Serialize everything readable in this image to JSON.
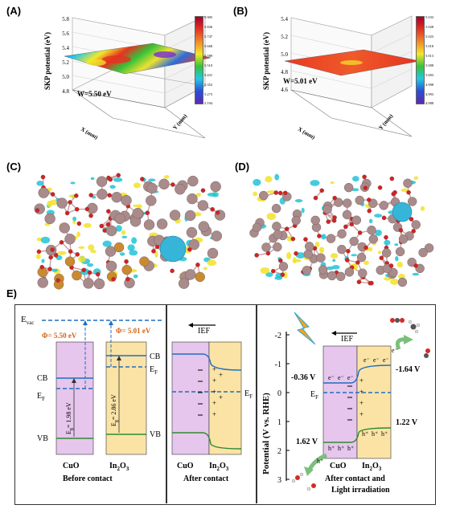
{
  "panels": {
    "a": {
      "label": "(A)",
      "zlabel": "SKP potential (eV)",
      "work_function": "W=5.50 eV",
      "xlabel": "X (mm)",
      "ylabel": "Y (mm)",
      "z_ticks": [
        "5.8",
        "5.6",
        "5.4",
        "5.2",
        "5.0",
        "4.8"
      ],
      "colorbar_ticks": [
        "5.905",
        "5.826",
        "5.747",
        "5.668",
        "5.589",
        "5.510",
        "5.431",
        "5.352",
        "5.273",
        "5.194"
      ]
    },
    "b": {
      "label": "(B)",
      "zlabel": "SKP potential (eV)",
      "work_function": "W=5.01 eV",
      "xlabel": "X (mm)",
      "ylabel": "Y (mm)",
      "z_ticks": [
        "5.4",
        "5.2",
        "5.0",
        "4.8",
        "4.6"
      ],
      "colorbar_ticks": [
        "5.033",
        "5.028",
        "5.023",
        "5.018",
        "5.013",
        "5.008",
        "5.003",
        "4.998",
        "4.993",
        "4.988"
      ]
    },
    "c": {
      "label": "(C)"
    },
    "d": {
      "label": "(D)"
    },
    "e": {
      "label": "E)",
      "before": {
        "evac": "E",
        "evac_sub": "vac",
        "phi_cuo": "Φ= 5.50 eV",
        "phi_in2o3": "Φ= 5.01 eV",
        "cb_left": "CB",
        "cb_right": "CB",
        "ef_left": "E",
        "ef_right": "E",
        "ef_sub": "F",
        "vb_left": "VB",
        "vb_right": "VB",
        "eg_cuo": "E",
        "eg_cuo_val": "= 1.98 eV",
        "eg_in2o3_val": "= 2.86 eV",
        "eg_sub": "g",
        "cuo": "CuO",
        "in2o3_main": "In",
        "in2o3_2": "2",
        "in2o3_o": "O",
        "in2o3_3": "3",
        "caption": "Before contact"
      },
      "after": {
        "ief": "IEF",
        "ef": "E",
        "ef_sub": "F",
        "cuo": "CuO",
        "caption": "After contact"
      },
      "light": {
        "yaxis_label": "Potential (V vs. RHE)",
        "y_ticks": [
          "-2",
          "-1",
          "0",
          "1",
          "2",
          "3"
        ],
        "ief": "IEF",
        "cb_cuo": "-0.36 V",
        "cb_in2o3": "-1.64 V",
        "vb_cuo": "1.62 V",
        "vb_in2o3": "1.22 V",
        "ef": "E",
        "ef_sub": "F",
        "electron": "e⁻",
        "hole": "h⁺",
        "cuo": "CuO",
        "caption_line1": "After contact and",
        "caption_line2": "Light irradiation"
      }
    }
  }
}
